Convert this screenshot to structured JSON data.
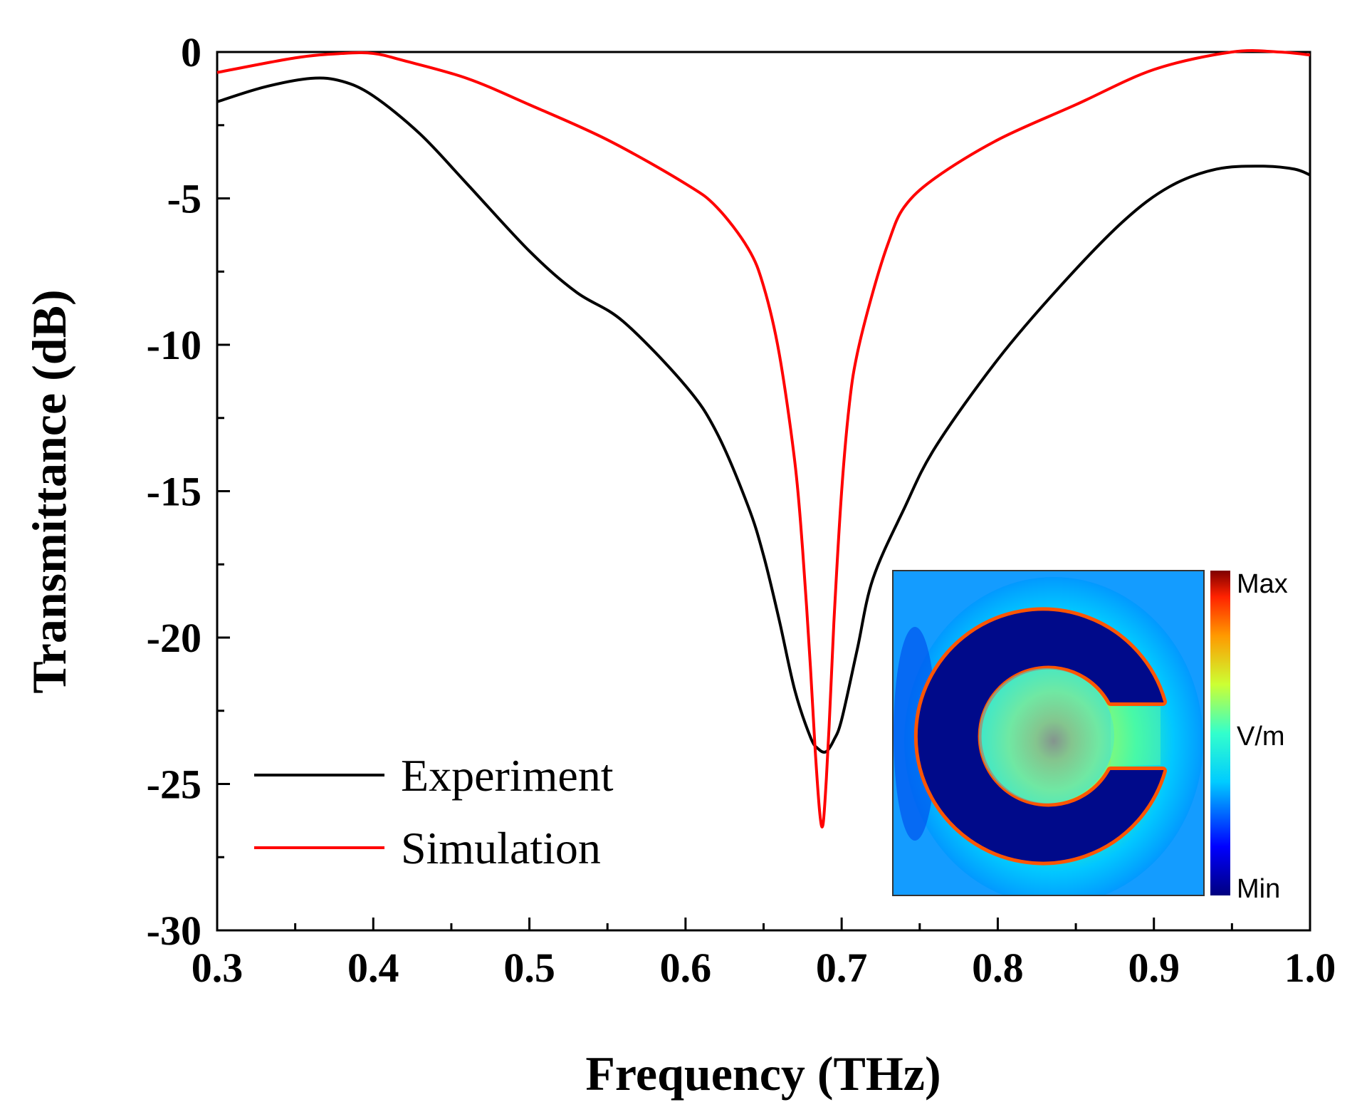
{
  "chart_data": {
    "type": "line",
    "title": "",
    "xlabel": "Frequency (THz)",
    "ylabel": "Transmittance (dB)",
    "xlim": [
      0.3,
      1.0
    ],
    "ylim": [
      -30,
      0
    ],
    "xticks": [
      "0.3",
      "0.4",
      "0.5",
      "0.6",
      "0.7",
      "0.8",
      "0.9",
      "1.0"
    ],
    "yticks": [
      "0",
      "-5",
      "-10",
      "-15",
      "-20",
      "-25",
      "-30"
    ],
    "grid": false,
    "legend_position": "bottom-left",
    "series": [
      {
        "name": "Experiment",
        "color": "#000000",
        "x": [
          0.3,
          0.33,
          0.36,
          0.38,
          0.4,
          0.43,
          0.46,
          0.5,
          0.53,
          0.56,
          0.6,
          0.62,
          0.64,
          0.65,
          0.66,
          0.67,
          0.68,
          0.685,
          0.69,
          0.695,
          0.7,
          0.71,
          0.72,
          0.74,
          0.76,
          0.8,
          0.84,
          0.88,
          0.91,
          0.94,
          0.97,
          0.99,
          1.0
        ],
        "y": [
          -1.7,
          -1.2,
          -0.9,
          -1.0,
          -1.5,
          -2.8,
          -4.5,
          -6.8,
          -8.2,
          -9.2,
          -11.4,
          -13.0,
          -15.5,
          -17.2,
          -19.4,
          -21.8,
          -23.4,
          -23.8,
          -23.9,
          -23.5,
          -22.8,
          -20.4,
          -18.0,
          -15.6,
          -13.5,
          -10.5,
          -8.0,
          -5.8,
          -4.6,
          -4.0,
          -3.9,
          -4.0,
          -4.2
        ]
      },
      {
        "name": "Simulation",
        "color": "#ff0000",
        "x": [
          0.3,
          0.35,
          0.38,
          0.4,
          0.42,
          0.46,
          0.5,
          0.55,
          0.6,
          0.62,
          0.64,
          0.65,
          0.66,
          0.67,
          0.675,
          0.68,
          0.683,
          0.686,
          0.688,
          0.69,
          0.692,
          0.695,
          0.7,
          0.705,
          0.71,
          0.72,
          0.73,
          0.74,
          0.76,
          0.8,
          0.85,
          0.9,
          0.95,
          0.98,
          1.0
        ],
        "y": [
          -0.7,
          -0.2,
          -0.05,
          -0.05,
          -0.3,
          -0.9,
          -1.8,
          -3.0,
          -4.5,
          -5.3,
          -6.7,
          -8.0,
          -10.3,
          -14.0,
          -17.0,
          -21.0,
          -23.8,
          -26.0,
          -26.4,
          -25.0,
          -23.0,
          -19.5,
          -15.0,
          -12.0,
          -10.3,
          -8.2,
          -6.5,
          -5.3,
          -4.3,
          -3.0,
          -1.8,
          -0.6,
          0.0,
          0.0,
          -0.1
        ]
      }
    ],
    "inset": {
      "description_labels": {
        "max": "Max",
        "unit": "V/m",
        "min": "Min"
      }
    }
  }
}
